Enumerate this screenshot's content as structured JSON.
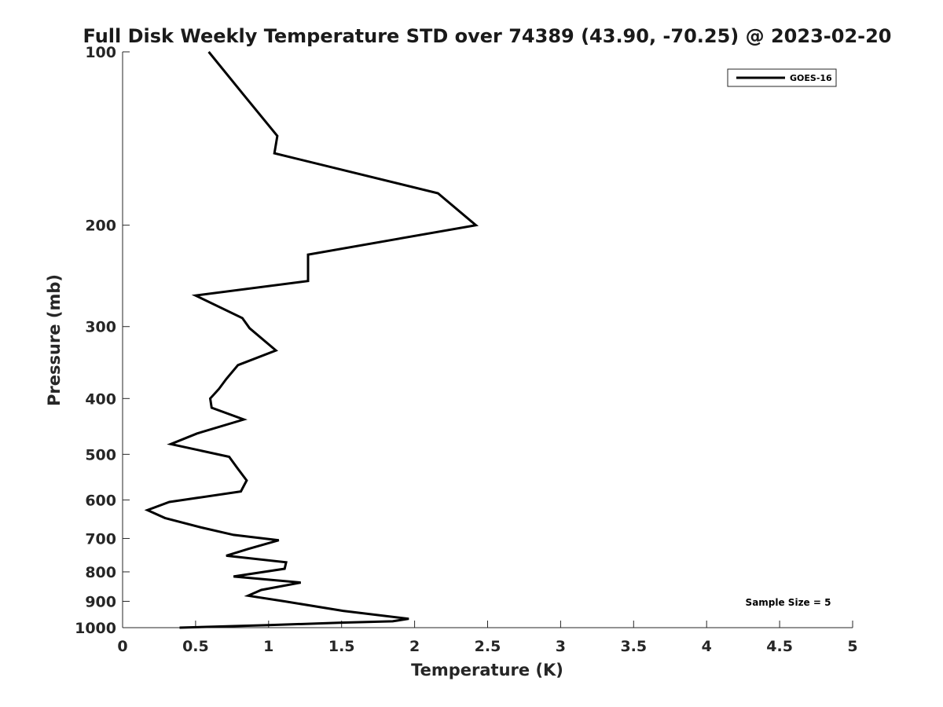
{
  "chart_data": {
    "type": "line",
    "title": "Full Disk Weekly Temperature STD over 74389 (43.90, -70.25) @ 2023-02-20",
    "xlabel": "Temperature (K)",
    "ylabel": "Pressure (mb)",
    "xlim": [
      0,
      5
    ],
    "ylim": [
      1000,
      100
    ],
    "yscale": "log",
    "y_reversed": true,
    "x_ticks": [
      "0",
      "0.5",
      "1",
      "1.5",
      "2",
      "2.5",
      "3",
      "3.5",
      "4",
      "4.5",
      "5"
    ],
    "y_ticks": [
      "100",
      "200",
      "300",
      "400",
      "500",
      "600",
      "700",
      "800",
      "900",
      "1000"
    ],
    "grid": false,
    "legend": {
      "placement": "top-right",
      "entries": [
        "GOES-16"
      ]
    },
    "annotation": "Sample Size = 5",
    "series": [
      {
        "name": "GOES-16",
        "color": "#000000",
        "x": [
          0.59,
          0.82,
          1.06,
          1.04,
          2.16,
          2.42,
          1.27,
          1.27,
          0.5,
          0.82,
          0.87,
          1.05,
          0.79,
          0.71,
          0.66,
          0.6,
          0.61,
          0.83,
          0.51,
          0.33,
          0.73,
          0.79,
          0.85,
          0.81,
          0.32,
          0.17,
          0.29,
          0.54,
          0.76,
          1.07,
          0.86,
          0.71,
          1.12,
          1.11,
          0.76,
          1.22,
          0.95,
          0.86,
          1.11,
          1.51,
          1.96,
          1.85,
          1.5,
          1.0,
          0.39
        ],
        "y": [
          100,
          118,
          140,
          150,
          176,
          200,
          225,
          250,
          265,
          290,
          302,
          330,
          350,
          370,
          385,
          400,
          415,
          435,
          460,
          480,
          505,
          530,
          555,
          580,
          605,
          625,
          645,
          670,
          690,
          705,
          730,
          750,
          770,
          790,
          815,
          835,
          860,
          880,
          900,
          935,
          965,
          975,
          980,
          990,
          1000
        ]
      }
    ]
  }
}
